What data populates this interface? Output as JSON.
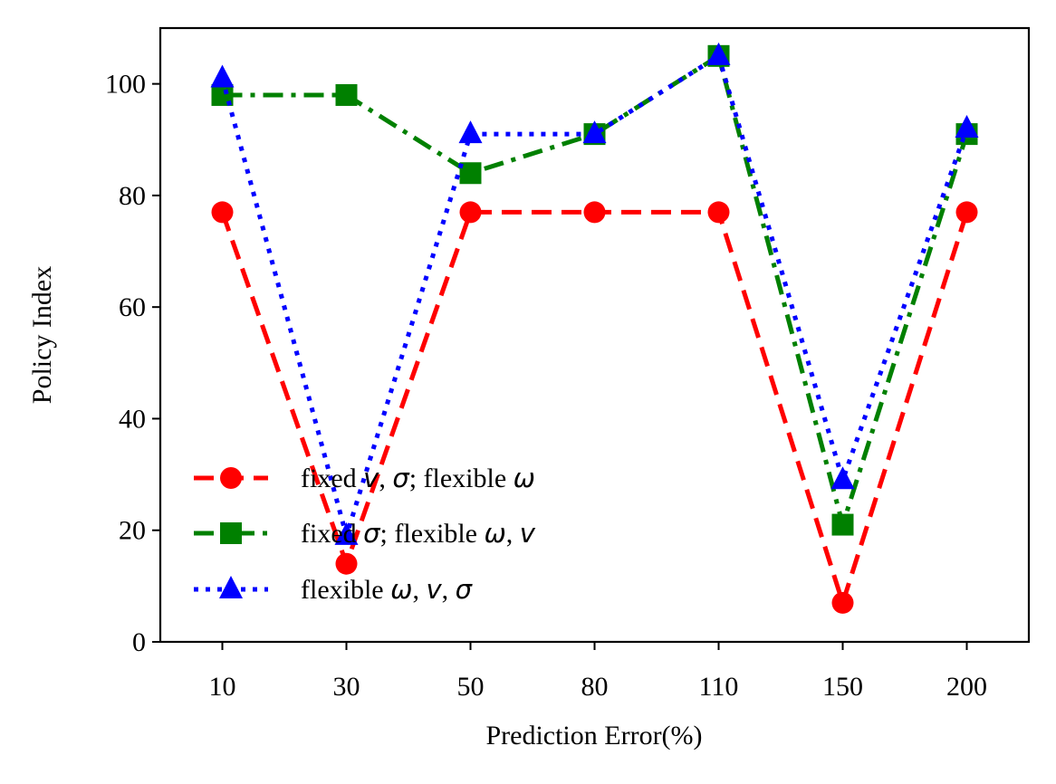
{
  "chart_data": {
    "type": "line",
    "xlabel": "Prediction Error(%)",
    "ylabel": "Policy Index",
    "categories": [
      "10",
      "30",
      "50",
      "80",
      "110",
      "150",
      "200"
    ],
    "ylim": [
      0,
      110
    ],
    "yticks": [
      0,
      20,
      40,
      60,
      80,
      100
    ],
    "ytick_labels": [
      "0",
      "20",
      "40",
      "60",
      "80",
      "100"
    ],
    "grid": false,
    "legend_position": "lower-left",
    "series": [
      {
        "name": "fixed v, σ; flexible ω",
        "color": "#ff0000",
        "line_style": "dashed",
        "marker": "circle",
        "values": [
          77,
          14,
          77,
          77,
          77,
          7,
          77
        ],
        "legend_parts": [
          {
            "text": "fixed ",
            "math": false
          },
          {
            "text": "v",
            "math": true
          },
          {
            "text": ", ",
            "math": false
          },
          {
            "text": "σ",
            "math": true
          },
          {
            "text": "; flexible ",
            "math": false
          },
          {
            "text": "ω",
            "math": true
          }
        ]
      },
      {
        "name": "fixed σ; flexible ω, v",
        "color": "#008000",
        "line_style": "dashdot",
        "marker": "square",
        "values": [
          98,
          98,
          84,
          91,
          105,
          21,
          91
        ],
        "legend_parts": [
          {
            "text": "fixed ",
            "math": false
          },
          {
            "text": "σ",
            "math": true
          },
          {
            "text": "; flexible ",
            "math": false
          },
          {
            "text": "ω",
            "math": true
          },
          {
            "text": ", ",
            "math": false
          },
          {
            "text": "v",
            "math": true
          }
        ]
      },
      {
        "name": "flexible ω, v, σ",
        "color": "#0000ff",
        "line_style": "dotted",
        "marker": "triangle",
        "values": [
          101,
          19,
          91,
          91,
          105,
          29,
          92
        ],
        "legend_parts": [
          {
            "text": "flexible ",
            "math": false
          },
          {
            "text": "ω",
            "math": true
          },
          {
            "text": ", ",
            "math": false
          },
          {
            "text": "v",
            "math": true
          },
          {
            "text": ", ",
            "math": false
          },
          {
            "text": "σ",
            "math": true
          }
        ]
      }
    ]
  }
}
